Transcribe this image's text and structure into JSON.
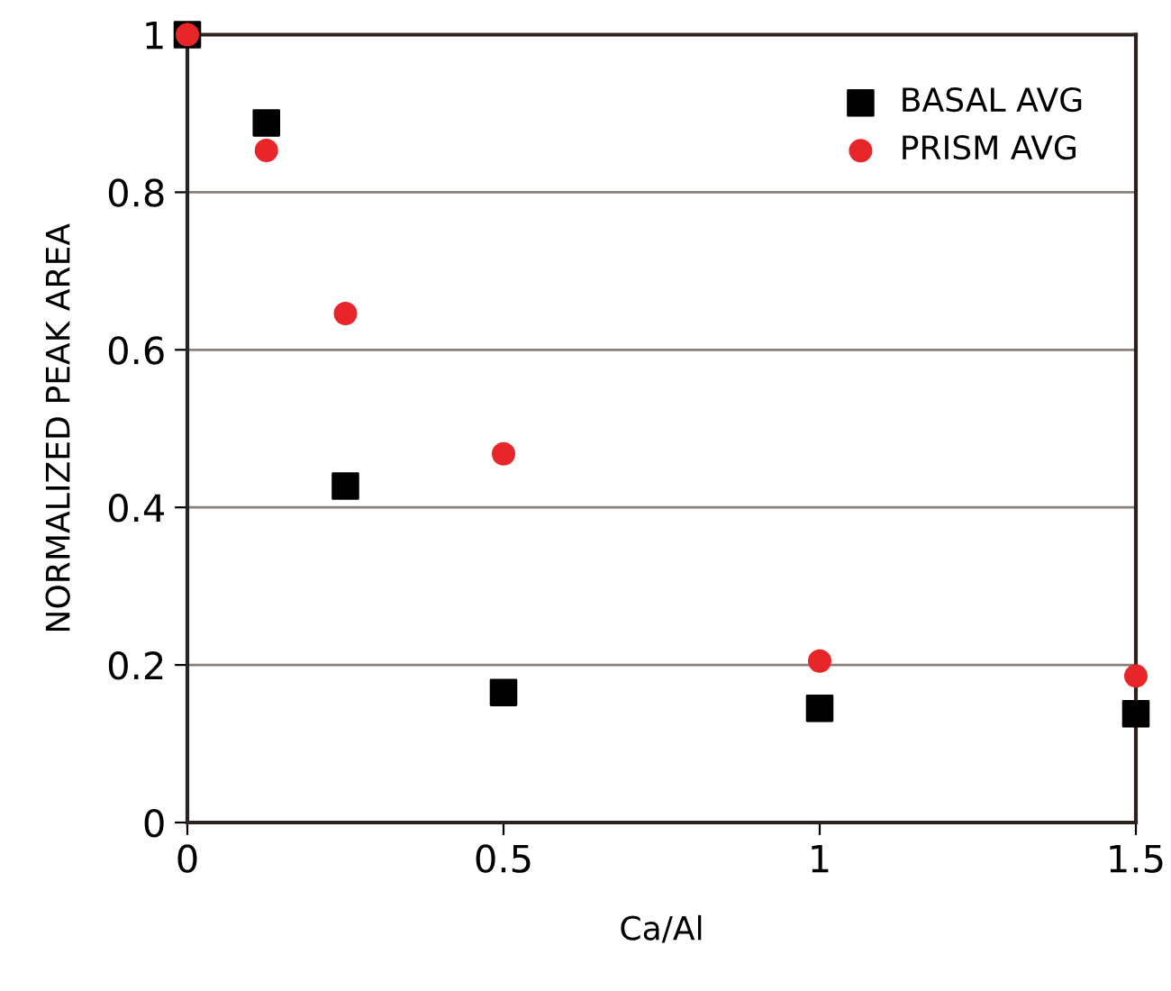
{
  "chart_data": {
    "type": "scatter",
    "xlabel": "Ca/Al",
    "ylabel": "NORMALIZED PEAK AREA",
    "xlim": [
      0,
      1.5
    ],
    "xticks": [
      0,
      0.5,
      1,
      1.5
    ],
    "ylim": [
      0,
      1
    ],
    "yticks": [
      0,
      0.2,
      0.4,
      0.6,
      0.8,
      1
    ],
    "grid": "y",
    "legend": "top right",
    "series": [
      {
        "name": "BASAL AVG",
        "color": "#000000",
        "marker": "square",
        "x": [
          0,
          0.125,
          0.25,
          0.5,
          1,
          1.5
        ],
        "values": [
          1,
          0.888,
          0.427,
          0.165,
          0.145,
          0.138
        ]
      },
      {
        "name": "PRISM AVG",
        "color": "#e8262a",
        "marker": "circle",
        "x": [
          0,
          0.125,
          0.25,
          0.5,
          1,
          1.5
        ],
        "values": [
          1,
          0.853,
          0.646,
          0.468,
          0.205,
          0.186
        ]
      }
    ]
  }
}
